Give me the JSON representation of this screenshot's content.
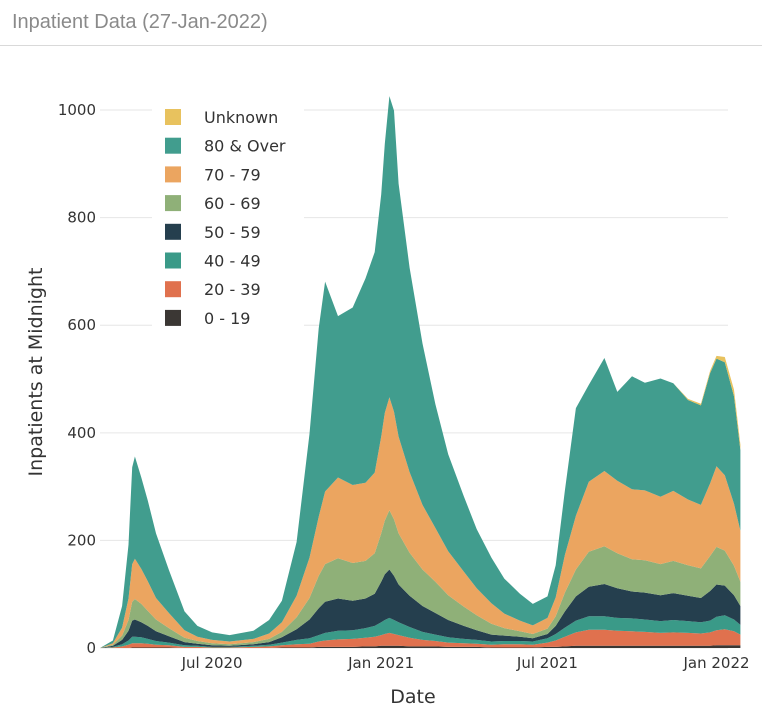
{
  "header": {
    "title": "Inpatient Data (27-Jan-2022)"
  },
  "chart_data": {
    "type": "area",
    "stacked": true,
    "xlabel": "Date",
    "ylabel": "Inpatients at Midnight",
    "x_ticks": [
      {
        "date": "2020-07-01",
        "label": "Jul 2020"
      },
      {
        "date": "2021-01-01",
        "label": "Jan 2021"
      },
      {
        "date": "2021-07-01",
        "label": "Jul 2021"
      },
      {
        "date": "2022-01-01",
        "label": "Jan 2022"
      }
    ],
    "y_ticks": [
      0,
      200,
      400,
      600,
      800,
      1000
    ],
    "xlim": [
      "2020-03-01",
      "2022-02-01"
    ],
    "ylim": [
      0,
      1080
    ],
    "grid": "horizontal",
    "legend_position": "top-left",
    "x": [
      "2020-03-01",
      "2020-03-15",
      "2020-03-25",
      "2020-04-01",
      "2020-04-05",
      "2020-04-08",
      "2020-04-15",
      "2020-04-22",
      "2020-05-01",
      "2020-05-15",
      "2020-06-01",
      "2020-06-15",
      "2020-07-01",
      "2020-07-20",
      "2020-08-15",
      "2020-09-01",
      "2020-09-15",
      "2020-10-01",
      "2020-10-15",
      "2020-10-25",
      "2020-11-01",
      "2020-11-15",
      "2020-12-01",
      "2020-12-15",
      "2020-12-25",
      "2021-01-01",
      "2021-01-05",
      "2021-01-10",
      "2021-01-15",
      "2021-01-20",
      "2021-02-01",
      "2021-02-15",
      "2021-03-01",
      "2021-03-15",
      "2021-04-01",
      "2021-04-15",
      "2021-05-01",
      "2021-05-15",
      "2021-06-01",
      "2021-06-15",
      "2021-07-01",
      "2021-07-10",
      "2021-07-20",
      "2021-08-01",
      "2021-08-15",
      "2021-09-01",
      "2021-09-15",
      "2021-10-01",
      "2021-10-15",
      "2021-11-01",
      "2021-11-15",
      "2021-12-01",
      "2021-12-15",
      "2021-12-25",
      "2022-01-01",
      "2022-01-10",
      "2022-01-20",
      "2022-01-27"
    ],
    "series": [
      {
        "name": "0 - 19",
        "color": "#3b3734",
        "values": [
          0,
          0,
          0,
          0,
          1,
          1,
          1,
          1,
          1,
          1,
          0,
          0,
          0,
          0,
          0,
          0,
          1,
          1,
          1,
          2,
          2,
          2,
          2,
          3,
          3,
          4,
          4,
          4,
          4,
          4,
          3,
          3,
          3,
          2,
          2,
          2,
          1,
          1,
          1,
          1,
          2,
          2,
          3,
          4,
          4,
          4,
          4,
          4,
          4,
          4,
          4,
          4,
          4,
          4,
          5,
          5,
          5,
          5
        ]
      },
      {
        "name": "20 - 39",
        "color": "#e0714e",
        "values": [
          0,
          1,
          3,
          6,
          8,
          8,
          8,
          7,
          5,
          4,
          2,
          2,
          1,
          1,
          2,
          3,
          4,
          6,
          7,
          10,
          12,
          14,
          15,
          16,
          18,
          20,
          22,
          24,
          22,
          20,
          16,
          12,
          10,
          8,
          7,
          6,
          5,
          6,
          6,
          5,
          8,
          12,
          18,
          25,
          30,
          30,
          28,
          27,
          26,
          24,
          25,
          24,
          23,
          25,
          28,
          30,
          26,
          20
        ]
      },
      {
        "name": "40 - 49",
        "color": "#3a9a88",
        "values": [
          0,
          1,
          4,
          8,
          12,
          12,
          11,
          9,
          7,
          5,
          3,
          2,
          1,
          1,
          2,
          3,
          5,
          8,
          10,
          12,
          14,
          16,
          16,
          18,
          20,
          24,
          26,
          28,
          26,
          24,
          20,
          15,
          12,
          10,
          8,
          7,
          6,
          6,
          6,
          6,
          8,
          12,
          17,
          22,
          25,
          25,
          24,
          24,
          23,
          22,
          23,
          22,
          21,
          22,
          25,
          26,
          22,
          18
        ]
      },
      {
        "name": "50 - 59",
        "color": "#253f4e",
        "values": [
          0,
          2,
          8,
          18,
          30,
          32,
          28,
          24,
          18,
          12,
          6,
          4,
          3,
          2,
          3,
          5,
          10,
          20,
          35,
          50,
          58,
          60,
          55,
          55,
          60,
          75,
          85,
          90,
          82,
          70,
          58,
          48,
          40,
          32,
          24,
          18,
          13,
          10,
          8,
          6,
          8,
          15,
          30,
          45,
          55,
          60,
          55,
          50,
          50,
          48,
          50,
          47,
          45,
          55,
          60,
          55,
          45,
          35
        ]
      },
      {
        "name": "60 - 69",
        "color": "#8fb078",
        "values": [
          0,
          2,
          8,
          20,
          35,
          38,
          34,
          28,
          22,
          15,
          8,
          5,
          4,
          3,
          4,
          6,
          10,
          22,
          40,
          60,
          70,
          75,
          70,
          70,
          75,
          90,
          100,
          110,
          105,
          95,
          80,
          68,
          58,
          46,
          36,
          28,
          20,
          14,
          10,
          8,
          10,
          18,
          35,
          50,
          65,
          70,
          65,
          60,
          60,
          58,
          60,
          57,
          55,
          65,
          70,
          65,
          55,
          45
        ]
      },
      {
        "name": "70 - 79",
        "color": "#eba560",
        "values": [
          0,
          3,
          15,
          40,
          70,
          75,
          65,
          55,
          40,
          28,
          14,
          8,
          6,
          5,
          6,
          10,
          18,
          40,
          75,
          110,
          135,
          150,
          145,
          145,
          150,
          180,
          200,
          210,
          200,
          180,
          150,
          120,
          100,
          82,
          65,
          50,
          38,
          27,
          20,
          16,
          20,
          35,
          70,
          100,
          130,
          140,
          135,
          130,
          130,
          125,
          130,
          122,
          118,
          135,
          150,
          140,
          115,
          95
        ]
      },
      {
        "name": "80 & Over",
        "color": "#419d8e",
        "values": [
          0,
          5,
          40,
          100,
          180,
          190,
          170,
          150,
          120,
          80,
          35,
          20,
          14,
          12,
          15,
          25,
          40,
          100,
          230,
          350,
          390,
          300,
          330,
          380,
          410,
          450,
          500,
          560,
          560,
          470,
          380,
          300,
          230,
          180,
          140,
          110,
          85,
          65,
          50,
          40,
          40,
          60,
          120,
          200,
          180,
          210,
          165,
          210,
          200,
          220,
          200,
          185,
          185,
          205,
          200,
          210,
          200,
          150
        ]
      },
      {
        "name": "Unknown",
        "color": "#e8c25e",
        "values": [
          0,
          0,
          0,
          0,
          0,
          0,
          0,
          0,
          0,
          0,
          0,
          0,
          0,
          0,
          0,
          0,
          0,
          0,
          0,
          0,
          0,
          0,
          0,
          0,
          0,
          0,
          0,
          0,
          0,
          0,
          0,
          0,
          0,
          0,
          0,
          0,
          0,
          0,
          0,
          0,
          0,
          0,
          0,
          0,
          0,
          0,
          0,
          0,
          0,
          0,
          0,
          2,
          3,
          4,
          5,
          10,
          12,
          10
        ]
      }
    ]
  }
}
